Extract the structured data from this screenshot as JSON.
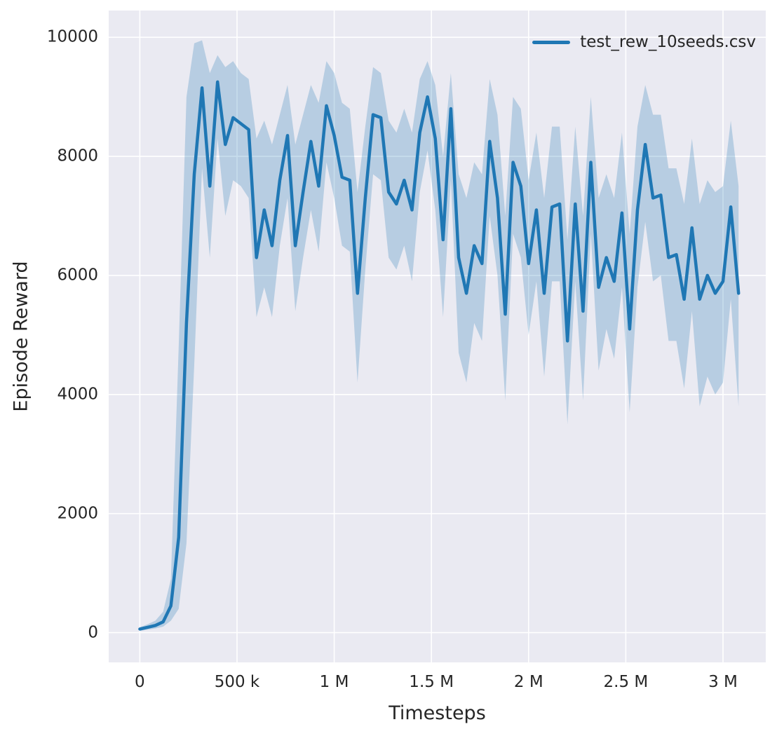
{
  "chart_data": {
    "type": "line",
    "title": "",
    "xlabel": "Timesteps",
    "ylabel": "Episode Reward",
    "legend_position": "upper right",
    "grid": true,
    "xlim": [
      -160000,
      3220000
    ],
    "ylim": [
      -500,
      10450
    ],
    "xticks": {
      "values": [
        0,
        500000,
        1000000,
        1500000,
        2000000,
        2500000,
        3000000
      ],
      "labels": [
        "0",
        "500 k",
        "1 M",
        "1.5 M",
        "2 M",
        "2.5 M",
        "3 M"
      ]
    },
    "yticks": {
      "values": [
        0,
        2000,
        4000,
        6000,
        8000,
        10000
      ],
      "labels": [
        "0",
        "2000",
        "4000",
        "6000",
        "8000",
        "10000"
      ]
    },
    "colors": {
      "panel_background": "#eaeaf2",
      "grid": "#ffffff",
      "line": "#1f77b4",
      "band": "rgba(31,119,180,0.25)",
      "text": "#262626"
    },
    "series": [
      {
        "name": "test_rew_10seeds.csv",
        "color": "#1f77b4",
        "x": [
          0,
          40000,
          80000,
          120000,
          160000,
          200000,
          240000,
          280000,
          320000,
          360000,
          400000,
          440000,
          480000,
          520000,
          560000,
          600000,
          640000,
          680000,
          720000,
          760000,
          800000,
          840000,
          880000,
          920000,
          960000,
          1000000,
          1040000,
          1080000,
          1120000,
          1160000,
          1200000,
          1240000,
          1280000,
          1320000,
          1360000,
          1400000,
          1440000,
          1480000,
          1520000,
          1560000,
          1600000,
          1640000,
          1680000,
          1720000,
          1760000,
          1800000,
          1840000,
          1880000,
          1920000,
          1960000,
          2000000,
          2040000,
          2080000,
          2120000,
          2160000,
          2200000,
          2240000,
          2280000,
          2320000,
          2360000,
          2400000,
          2440000,
          2480000,
          2520000,
          2560000,
          2600000,
          2640000,
          2680000,
          2720000,
          2760000,
          2800000,
          2840000,
          2880000,
          2920000,
          2960000,
          3000000,
          3040000,
          3080000
        ],
        "mean": [
          60,
          90,
          120,
          180,
          450,
          1600,
          5200,
          7700,
          9150,
          7500,
          9250,
          8200,
          8650,
          8550,
          8450,
          6300,
          7100,
          6500,
          7600,
          8350,
          6500,
          7400,
          8250,
          7500,
          8850,
          8350,
          7650,
          7600,
          5700,
          7300,
          8700,
          8650,
          7400,
          7200,
          7600,
          7100,
          8400,
          9000,
          8300,
          6600,
          8800,
          6300,
          5700,
          6500,
          6200,
          8250,
          7300,
          5350,
          7900,
          7500,
          6200,
          7100,
          5700,
          7150,
          7200,
          4900,
          7200,
          5400,
          7900,
          5800,
          6300,
          5900,
          7050,
          5100,
          7100,
          8200,
          7300,
          7350,
          6300,
          6350,
          5600,
          6800,
          5600,
          6000,
          5700,
          5900,
          7150,
          5700
        ],
        "band_lower": [
          30,
          50,
          70,
          100,
          200,
          400,
          1500,
          4500,
          7800,
          6300,
          8300,
          7000,
          7600,
          7500,
          7300,
          5300,
          5800,
          5300,
          6500,
          7300,
          5400,
          6300,
          7100,
          6400,
          7900,
          7300,
          6500,
          6400,
          4200,
          6100,
          7700,
          7600,
          6300,
          6100,
          6500,
          5900,
          7400,
          8100,
          7100,
          5300,
          7600,
          4700,
          4200,
          5200,
          4900,
          7000,
          6000,
          3900,
          6700,
          6300,
          5000,
          5900,
          4300,
          5900,
          5900,
          3500,
          5900,
          3900,
          6700,
          4400,
          5100,
          4600,
          5800,
          3700,
          5800,
          6900,
          5900,
          6000,
          4900,
          4900,
          4100,
          5400,
          3800,
          4300,
          4000,
          4200,
          5600,
          3800
        ],
        "band_upper": [
          90,
          140,
          200,
          350,
          900,
          4800,
          9000,
          9900,
          9950,
          9400,
          9700,
          9500,
          9600,
          9400,
          9300,
          8300,
          8600,
          8200,
          8700,
          9200,
          8200,
          8700,
          9200,
          8900,
          9600,
          9400,
          8900,
          8800,
          7400,
          8500,
          9500,
          9400,
          8600,
          8400,
          8800,
          8400,
          9300,
          9600,
          9200,
          8000,
          9400,
          7700,
          7300,
          7900,
          7700,
          9300,
          8700,
          7000,
          9000,
          8800,
          7600,
          8400,
          7300,
          8500,
          8500,
          6600,
          8500,
          7000,
          9000,
          7300,
          7700,
          7300,
          8400,
          6700,
          8500,
          9200,
          8700,
          8700,
          7800,
          7800,
          7200,
          8300,
          7200,
          7600,
          7400,
          7500,
          8600,
          7500
        ]
      }
    ]
  }
}
